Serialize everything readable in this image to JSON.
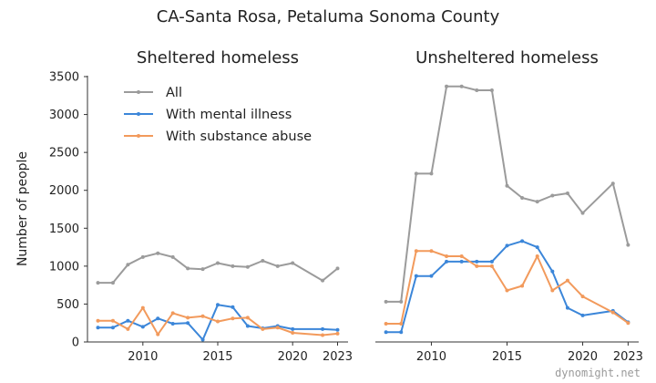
{
  "suptitle": "CA-Santa Rosa, Petaluma Sonoma County",
  "watermark": "dynomight.net",
  "colors": {
    "All": "#9b9b9b",
    "With mental illness": "#3b86d9",
    "With substance abuse": "#f29a5c"
  },
  "chart_data": [
    {
      "type": "line",
      "title": "Sheltered homeless",
      "ylabel": "Number of people",
      "xlim": [
        2006.3,
        2023.7
      ],
      "ylim": [
        0,
        3500
      ],
      "xticks": [
        "2010",
        "2015",
        "2020",
        "2023"
      ],
      "yticks": [
        "0",
        "500",
        "1000",
        "1500",
        "2000",
        "2500",
        "3000",
        "3500"
      ],
      "legend": {
        "placement": "top-left",
        "entries": [
          "All",
          "With mental illness",
          "With substance abuse"
        ]
      },
      "grid": false,
      "series": [
        {
          "name": "All",
          "x": [
            2007,
            2008,
            2009,
            2010,
            2011,
            2012,
            2013,
            2014,
            2015,
            2016,
            2017,
            2018,
            2019,
            2020,
            2022,
            2023
          ],
          "y": [
            780,
            780,
            1020,
            1120,
            1170,
            1120,
            970,
            960,
            1040,
            1000,
            990,
            1070,
            1000,
            1040,
            810,
            970
          ]
        },
        {
          "name": "With mental illness",
          "x": [
            2007,
            2008,
            2009,
            2010,
            2011,
            2012,
            2013,
            2014,
            2015,
            2016,
            2017,
            2018,
            2019,
            2020,
            2022,
            2023
          ],
          "y": [
            190,
            190,
            280,
            200,
            310,
            240,
            250,
            30,
            490,
            460,
            210,
            180,
            210,
            170,
            170,
            160
          ]
        },
        {
          "name": "With substance abuse",
          "x": [
            2007,
            2008,
            2009,
            2010,
            2011,
            2012,
            2013,
            2014,
            2015,
            2016,
            2017,
            2018,
            2019,
            2020,
            2022,
            2023
          ],
          "y": [
            280,
            280,
            170,
            450,
            100,
            380,
            320,
            340,
            270,
            310,
            320,
            170,
            190,
            120,
            90,
            110
          ]
        }
      ]
    },
    {
      "type": "line",
      "title": "Unsheltered homeless",
      "xlim": [
        2006.3,
        2023.7
      ],
      "ylim": [
        0,
        3500
      ],
      "xticks": [
        "2010",
        "2015",
        "2020",
        "2023"
      ],
      "grid": false,
      "series": [
        {
          "name": "All",
          "x": [
            2007,
            2008,
            2009,
            2010,
            2011,
            2012,
            2013,
            2014,
            2015,
            2016,
            2017,
            2018,
            2019,
            2020,
            2022,
            2023
          ],
          "y": [
            530,
            530,
            2220,
            2220,
            3370,
            3370,
            3320,
            3320,
            2060,
            1900,
            1850,
            1930,
            1960,
            1700,
            2090,
            1280
          ]
        },
        {
          "name": "With mental illness",
          "x": [
            2007,
            2008,
            2009,
            2010,
            2011,
            2012,
            2013,
            2014,
            2015,
            2016,
            2017,
            2018,
            2019,
            2020,
            2022,
            2023
          ],
          "y": [
            130,
            130,
            870,
            870,
            1060,
            1060,
            1060,
            1060,
            1270,
            1330,
            1250,
            930,
            450,
            350,
            410,
            260
          ]
        },
        {
          "name": "With substance abuse",
          "x": [
            2007,
            2008,
            2009,
            2010,
            2011,
            2012,
            2013,
            2014,
            2015,
            2016,
            2017,
            2018,
            2019,
            2020,
            2022,
            2023
          ],
          "y": [
            240,
            240,
            1200,
            1200,
            1130,
            1130,
            1000,
            1000,
            680,
            740,
            1130,
            680,
            810,
            600,
            390,
            250
          ]
        }
      ]
    }
  ]
}
